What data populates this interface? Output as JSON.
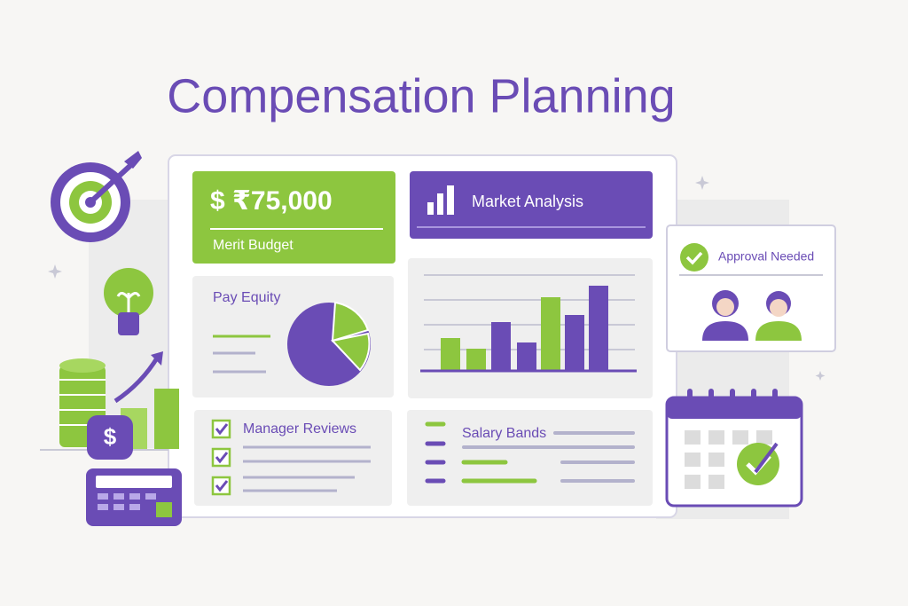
{
  "header": {
    "title": "Compensation Planning"
  },
  "cards": {
    "merit": {
      "amount": "$ ₹75,000",
      "label": "Merit Budget"
    },
    "market": {
      "title": "Market Analysis"
    },
    "equity": {
      "title": "Pay Equity"
    },
    "reviews": {
      "title": "Manager Reviews"
    },
    "bands": {
      "title": "Salary Bands"
    },
    "approval": {
      "title": "Approval Needed"
    }
  },
  "icons": {
    "coin": "$"
  }
}
